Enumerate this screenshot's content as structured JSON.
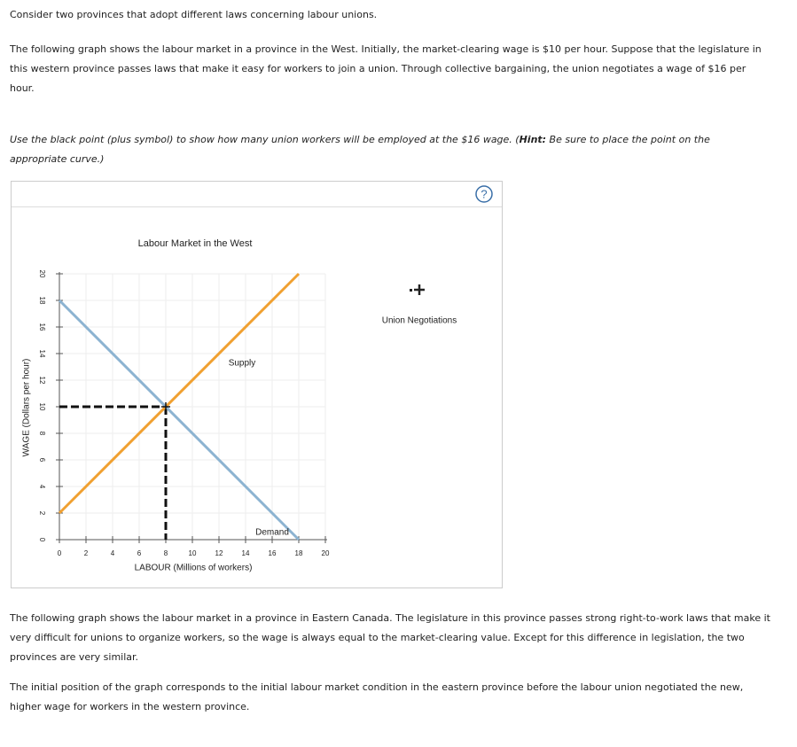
{
  "intro": "Consider two provinces that adopt different laws concerning labour unions.",
  "question": "The following graph shows the labour market in a province in the West. Initially, the market-clearing wage is $10 per hour. Suppose that the legislature in this western province passes laws that make it easy for workers to join a union. Through collective bargaining, the union negotiates a wage of $16 per hour.",
  "instruction": {
    "before": "Use the black point (plus symbol) to show how many union workers will be employed at the $16 wage. (",
    "hint": "Hint:",
    "after": " Be sure to place the point on the appropriate curve.)"
  },
  "help_icon": "?",
  "chart_data": {
    "type": "line",
    "title": "Labour Market in the West",
    "xlabel": "LABOUR (Millions of workers)",
    "ylabel": "WAGE (Dollars per hour)",
    "xlim": [
      0,
      20
    ],
    "ylim": [
      0,
      20
    ],
    "xticks": [
      0,
      2,
      4,
      6,
      8,
      10,
      12,
      14,
      16,
      18,
      20
    ],
    "yticks": [
      0,
      2,
      4,
      6,
      8,
      10,
      12,
      14,
      16,
      18,
      20
    ],
    "grid": true,
    "series": [
      {
        "name": "Supply",
        "color": "#f0a030",
        "x": [
          0,
          18
        ],
        "values": [
          2,
          20
        ]
      },
      {
        "name": "Demand",
        "color": "#8cb3d1",
        "x": [
          0,
          18
        ],
        "values": [
          18,
          0
        ]
      }
    ],
    "equilibrium": {
      "x": 8,
      "y": 10
    }
  },
  "palette": {
    "label": "Union Negotiations"
  },
  "paragraphs": [
    "The following graph shows the labour market in a province in Eastern Canada. The legislature in this province passes strong right-to-work laws that make it very difficult for unions to organize workers, so the wage is always equal to the market-clearing value. Except for this difference in legislation, the two provinces are very similar.",
    "The initial position of the graph corresponds to the initial labour market condition in the eastern province before the labour union negotiated the new, higher wage for workers in the western province."
  ]
}
